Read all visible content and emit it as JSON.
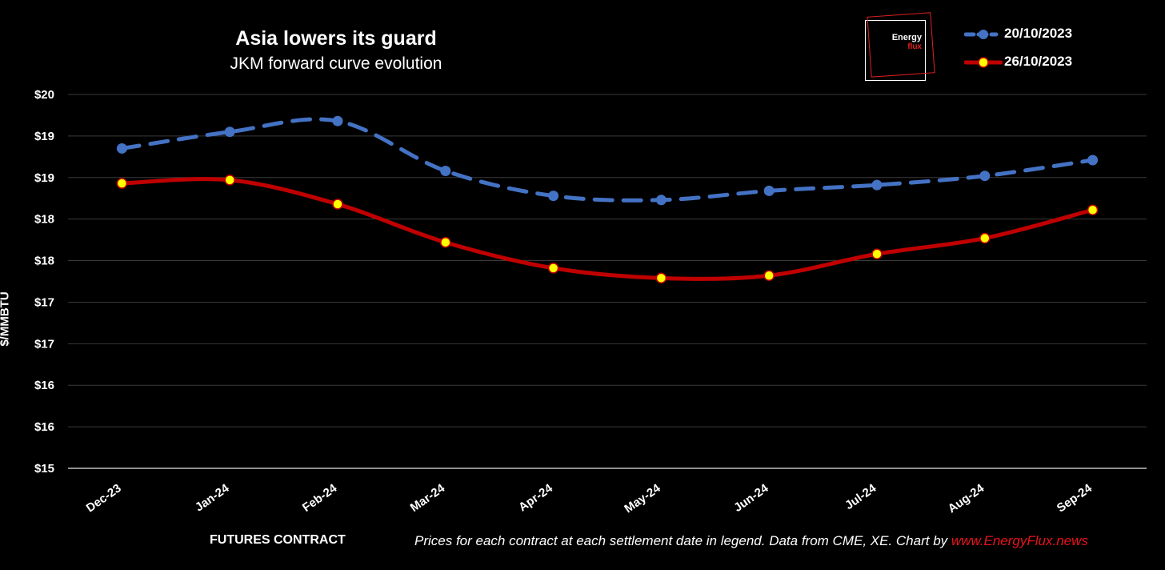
{
  "title": "Asia lowers its guard",
  "subtitle": "JKM forward curve evolution",
  "logo": {
    "line1": "Energy",
    "line2": "flux"
  },
  "footer": {
    "note": "Prices for each contract at each settlement date in legend. Data from CME, XE. Chart by ",
    "link": "www.EnergyFlux.news"
  },
  "colors": {
    "series1": "#4472c4",
    "series2": "#c00000",
    "marker2": "#ffff00",
    "grid": "#3a3a3a"
  },
  "chart_data": {
    "type": "line",
    "title": "Asia lowers its guard",
    "subtitle": "JKM forward curve evolution",
    "xlabel": "FUTURES CONTRACT",
    "ylabel": "$/MMBTU",
    "ylim": [
      15,
      19.5
    ],
    "yticks": [
      15,
      15.5,
      16,
      16.5,
      17,
      17.5,
      18,
      18.5,
      19,
      19.5
    ],
    "ytick_labels": [
      "$15",
      "$16",
      "$16",
      "$17",
      "$17",
      "$18",
      "$18",
      "$19",
      "$19",
      "$20"
    ],
    "grid": true,
    "legend_position": "top-right",
    "categories": [
      "Dec-23",
      "Jan-24",
      "Feb-24",
      "Mar-24",
      "Apr-24",
      "May-24",
      "Jun-24",
      "Jul-24",
      "Aug-24",
      "Sep-24"
    ],
    "series": [
      {
        "name": "20/10/2023",
        "style": "dashed",
        "values": [
          18.85,
          19.05,
          19.18,
          18.58,
          18.28,
          18.23,
          18.34,
          18.41,
          18.52,
          18.71
        ]
      },
      {
        "name": "26/10/2023",
        "style": "solid",
        "values": [
          18.43,
          18.47,
          18.18,
          17.72,
          17.41,
          17.29,
          17.32,
          17.58,
          17.77,
          18.11
        ]
      }
    ]
  }
}
